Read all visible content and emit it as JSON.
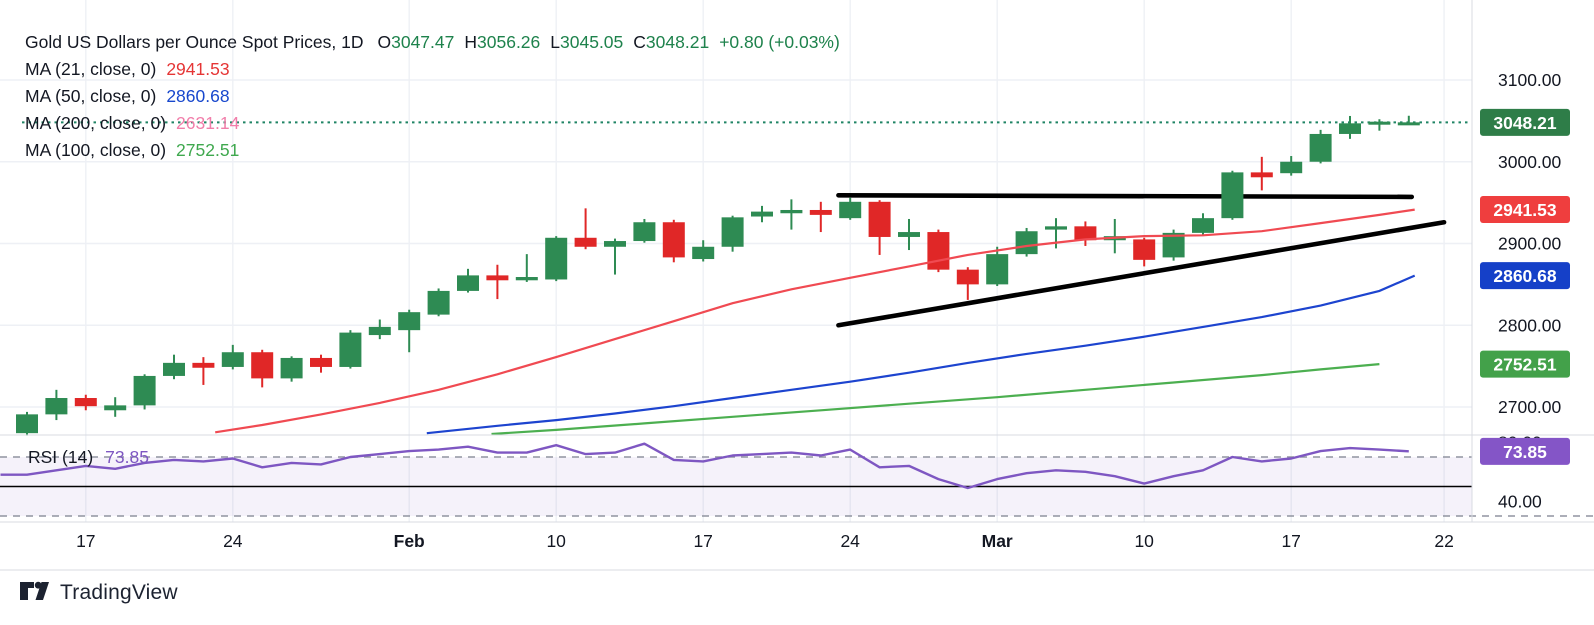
{
  "header": {
    "title": "Gold US Dollars per Ounce Spot Prices, 1D",
    "ohlc": [
      {
        "label": "O",
        "value": "3047.47"
      },
      {
        "label": "H",
        "value": "3056.26"
      },
      {
        "label": "L",
        "value": "3045.05"
      },
      {
        "label": "C",
        "value": "3048.21"
      }
    ],
    "change": "+0.80 (+0.03%)"
  },
  "ma_legend": [
    {
      "label": "MA (21, close, 0)",
      "value": "2941.53",
      "color": "#e53535"
    },
    {
      "label": "MA (50, close, 0)",
      "value": "2860.68",
      "color": "#1747cd"
    },
    {
      "label": "MA (200, close, 0)",
      "value": "2631.14",
      "color": "#f17eaa"
    },
    {
      "label": "MA (100, close, 0)",
      "value": "2752.51",
      "color": "#3fa84e"
    }
  ],
  "rsi_legend": {
    "label": "RSI (14)",
    "value": "73.85"
  },
  "price_axis": {
    "ticks": [
      {
        "text": "3100.00",
        "price": 3100
      },
      {
        "text": "3000.00",
        "price": 3000
      },
      {
        "text": "2900.00",
        "price": 2900
      },
      {
        "text": "2800.00",
        "price": 2800
      },
      {
        "text": "2700.00",
        "price": 2700
      }
    ],
    "badges": [
      {
        "text": "3048.21",
        "price": 3048.21,
        "color": "#2e7d48"
      },
      {
        "text": "2941.53",
        "price": 2941.53,
        "color": "#ef3e3e"
      },
      {
        "text": "2860.68",
        "price": 2860.68,
        "color": "#1540c8"
      },
      {
        "text": "2752.51",
        "price": 2752.51,
        "color": "#43a14a"
      }
    ]
  },
  "rsi_axis": {
    "partial_tick": {
      "text": "80.00",
      "value": 80
    },
    "ticks": [
      {
        "text": "40.00",
        "value": 40
      }
    ],
    "badge": {
      "text": "73.85",
      "value": 73.85,
      "color": "#8455c7"
    }
  },
  "time_axis": [
    {
      "text": "17",
      "i": 2,
      "bold": false
    },
    {
      "text": "24",
      "i": 7,
      "bold": false
    },
    {
      "text": "Feb",
      "i": 13,
      "bold": true
    },
    {
      "text": "10",
      "i": 18,
      "bold": false
    },
    {
      "text": "17",
      "i": 23,
      "bold": false
    },
    {
      "text": "24",
      "i": 28,
      "bold": false
    },
    {
      "text": "Mar",
      "i": 33,
      "bold": true
    },
    {
      "text": "10",
      "i": 38,
      "bold": false
    },
    {
      "text": "17",
      "i": 43,
      "bold": false
    },
    {
      "text": "22",
      "i": 48.2,
      "bold": false
    }
  ],
  "watermark": {
    "brand": "TradingView"
  },
  "colors": {
    "up": "#2e8b53",
    "down": "#e02727",
    "ma21_line": "#f04a52",
    "ma50_line": "#1d44cf",
    "ma100_line": "#4caf50",
    "rsi_line": "#7e57c2",
    "rsi_band_fill": "rgba(126,87,194,0.08)",
    "dotted_price_line": "#1f8464",
    "trendline": "#000000",
    "grid": "#eef0f5",
    "axis_border": "#d8dbe2",
    "axis_text": "#131722"
  },
  "chart_data": {
    "type": "candlestick",
    "title": "Gold US Dollars per Ounce Spot Prices, 1D",
    "timeframe": "1D",
    "ylim_main": [
      2666,
      3198
    ],
    "grid_prices": [
      3100,
      3000,
      2900,
      2800,
      2700
    ],
    "current_price": 3048.21,
    "dates": [
      "Jan 15",
      "Jan 16",
      "Jan 17",
      "Jan 20",
      "Jan 21",
      "Jan 22",
      "Jan 23",
      "Jan 24",
      "Jan 27",
      "Jan 28",
      "Jan 29",
      "Jan 30",
      "Jan 31",
      "Feb 3",
      "Feb 4",
      "Feb 5",
      "Feb 6",
      "Feb 7",
      "Feb 10",
      "Feb 11",
      "Feb 12",
      "Feb 13",
      "Feb 14",
      "Feb 17",
      "Feb 18",
      "Feb 19",
      "Feb 20",
      "Feb 21",
      "Feb 24",
      "Feb 25",
      "Feb 26",
      "Feb 27",
      "Feb 28",
      "Mar 3",
      "Mar 4",
      "Mar 5",
      "Mar 6",
      "Mar 7",
      "Mar 10",
      "Mar 11",
      "Mar 12",
      "Mar 13",
      "Mar 14",
      "Mar 17",
      "Mar 18",
      "Mar 19",
      "Mar 20",
      "Mar 21"
    ],
    "candles": [
      [
        2668,
        2694,
        2665,
        2691
      ],
      [
        2691,
        2721,
        2684,
        2711
      ],
      [
        2711,
        2715,
        2696,
        2701
      ],
      [
        2696,
        2712,
        2688,
        2702
      ],
      [
        2702,
        2740,
        2697,
        2738
      ],
      [
        2738,
        2764,
        2734,
        2754
      ],
      [
        2754,
        2761,
        2727,
        2748
      ],
      [
        2749,
        2776,
        2746,
        2767
      ],
      [
        2767,
        2770,
        2724,
        2735
      ],
      [
        2735,
        2762,
        2731,
        2760
      ],
      [
        2760,
        2764,
        2742,
        2749
      ],
      [
        2749,
        2794,
        2747,
        2791
      ],
      [
        2788,
        2807,
        2783,
        2798
      ],
      [
        2794,
        2819,
        2767,
        2816
      ],
      [
        2813,
        2845,
        2811,
        2842
      ],
      [
        2842,
        2869,
        2840,
        2861
      ],
      [
        2861,
        2874,
        2832,
        2855
      ],
      [
        2855,
        2887,
        2853,
        2859
      ],
      [
        2856,
        2909,
        2854,
        2907
      ],
      [
        2907,
        2943,
        2893,
        2896
      ],
      [
        2896,
        2906,
        2862,
        2903
      ],
      [
        2903,
        2930,
        2901,
        2926
      ],
      [
        2926,
        2929,
        2877,
        2883
      ],
      [
        2881,
        2904,
        2878,
        2896
      ],
      [
        2896,
        2934,
        2890,
        2932
      ],
      [
        2933,
        2946,
        2926,
        2939
      ],
      [
        2937,
        2954,
        2917,
        2941
      ],
      [
        2941,
        2951,
        2914,
        2935
      ],
      [
        2931,
        2956,
        2929,
        2951
      ],
      [
        2951,
        2953,
        2886,
        2908
      ],
      [
        2908,
        2930,
        2892,
        2914
      ],
      [
        2914,
        2917,
        2865,
        2868
      ],
      [
        2868,
        2871,
        2831,
        2850
      ],
      [
        2850,
        2896,
        2848,
        2887
      ],
      [
        2887,
        2919,
        2884,
        2915
      ],
      [
        2917,
        2931,
        2894,
        2921
      ],
      [
        2921,
        2927,
        2897,
        2904
      ],
      [
        2904,
        2930,
        2888,
        2909
      ],
      [
        2905,
        2907,
        2872,
        2880
      ],
      [
        2883,
        2917,
        2879,
        2913
      ],
      [
        2913,
        2937,
        2911,
        2931
      ],
      [
        2931,
        2989,
        2929,
        2987
      ],
      [
        2987,
        3006,
        2965,
        2981
      ],
      [
        2986,
        3007,
        2983,
        3000
      ],
      [
        3000,
        3039,
        2998,
        3034
      ],
      [
        3034,
        3056,
        3028,
        3047
      ],
      [
        3046,
        3052,
        3038,
        3049
      ],
      [
        3047.47,
        3056.26,
        3045.05,
        3048.21
      ]
    ],
    "moving_averages": [
      {
        "name": "MA 21",
        "value": 2941.53,
        "points": [
          [
            6.4,
            2669
          ],
          [
            8,
            2678
          ],
          [
            10,
            2691
          ],
          [
            12,
            2705
          ],
          [
            14,
            2721
          ],
          [
            16,
            2740
          ],
          [
            18,
            2761
          ],
          [
            20,
            2783
          ],
          [
            22,
            2805
          ],
          [
            24,
            2827
          ],
          [
            26,
            2844
          ],
          [
            28,
            2858
          ],
          [
            30,
            2872
          ],
          [
            32,
            2886
          ],
          [
            34,
            2897
          ],
          [
            36,
            2905
          ],
          [
            38,
            2909
          ],
          [
            40,
            2910
          ],
          [
            42,
            2915
          ],
          [
            44,
            2925
          ],
          [
            46,
            2935
          ],
          [
            47.2,
            2941.5
          ]
        ]
      },
      {
        "name": "MA 50",
        "value": 2860.68,
        "points": [
          [
            13.6,
            2668
          ],
          [
            16,
            2677
          ],
          [
            18,
            2684
          ],
          [
            20,
            2692
          ],
          [
            22,
            2701
          ],
          [
            24,
            2711
          ],
          [
            26,
            2721
          ],
          [
            28,
            2731
          ],
          [
            30,
            2742
          ],
          [
            32,
            2754
          ],
          [
            34,
            2765
          ],
          [
            36,
            2775
          ],
          [
            38,
            2786
          ],
          [
            40,
            2798
          ],
          [
            42,
            2810
          ],
          [
            44,
            2824
          ],
          [
            46,
            2842
          ],
          [
            47.2,
            2860.7
          ]
        ]
      },
      {
        "name": "MA 100",
        "value": 2752.51,
        "points": [
          [
            15.8,
            2667
          ],
          [
            18,
            2672
          ],
          [
            21,
            2680
          ],
          [
            24,
            2688
          ],
          [
            27,
            2696
          ],
          [
            30,
            2704
          ],
          [
            33,
            2712
          ],
          [
            36,
            2721
          ],
          [
            39,
            2730
          ],
          [
            42,
            2739
          ],
          [
            44,
            2746
          ],
          [
            46,
            2752.5
          ]
        ]
      },
      {
        "name": "MA 200",
        "value": 2631.14,
        "points": []
      }
    ],
    "trendlines": [
      {
        "from_index": 27.6,
        "from_price": 2959,
        "to_index": 47.1,
        "to_price": 2957
      },
      {
        "from_index": 27.6,
        "from_price": 2800,
        "to_index": 48.2,
        "to_price": 2926
      }
    ],
    "rsi": {
      "period": 14,
      "last_value": 73.85,
      "upper_band": 70,
      "lower_band": 30,
      "mid_line": 50,
      "values": [
        58,
        61,
        64,
        62,
        66,
        68,
        67,
        69,
        63,
        66,
        65,
        70,
        72,
        74,
        75,
        77,
        73,
        73,
        78,
        72,
        73,
        79,
        68,
        67,
        71,
        72,
        73,
        71,
        75,
        63,
        64,
        55,
        49,
        55,
        59,
        61,
        60,
        57,
        52,
        57,
        61,
        70,
        67,
        69,
        74,
        76,
        75,
        73.85
      ]
    }
  }
}
